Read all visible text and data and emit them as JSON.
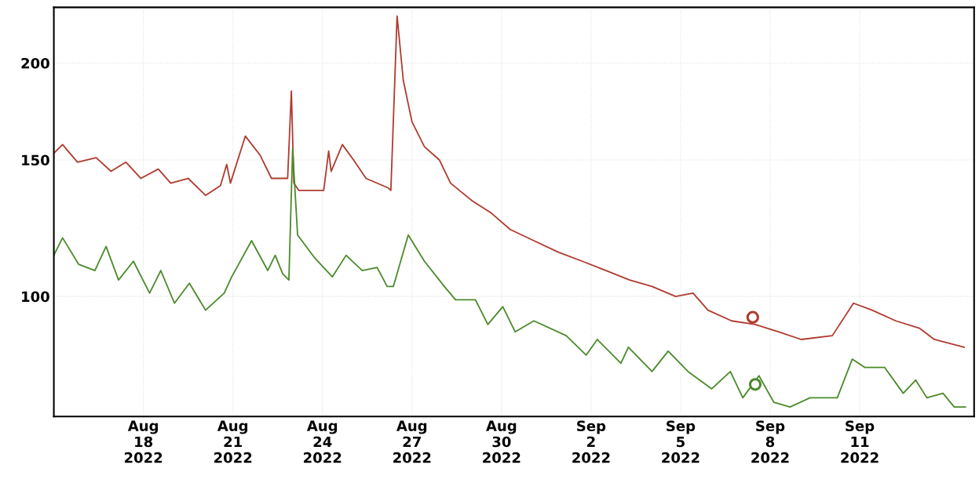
{
  "chart_data": {
    "type": "line",
    "log": "y",
    "grid": true,
    "marker": "none",
    "line_style": "solid",
    "xlim": [
      "2022-08-15T00:00",
      "2022-09-14T20:00"
    ],
    "ylim": [
      70,
      236
    ],
    "yticks": [
      100,
      150,
      200
    ],
    "xticks": [
      {
        "value": "2022-08-18",
        "label": "Aug\n18\n2022"
      },
      {
        "value": "2022-08-21",
        "label": "Aug\n21\n2022"
      },
      {
        "value": "2022-08-24",
        "label": "Aug\n24\n2022"
      },
      {
        "value": "2022-08-27",
        "label": "Aug\n27\n2022"
      },
      {
        "value": "2022-08-30",
        "label": "Aug\n30\n2022"
      },
      {
        "value": "2022-09-02",
        "label": "Sep\n2\n2022"
      },
      {
        "value": "2022-09-05",
        "label": "Sep\n5\n2022"
      },
      {
        "value": "2022-09-08",
        "label": "Sep\n8\n2022"
      },
      {
        "value": "2022-09-11",
        "label": "Sep\n11\n2022"
      }
    ],
    "series": [
      {
        "color": "#b03a2e",
        "x": [
          "2022-08-15T00:00",
          "2022-08-15T07:00",
          "2022-08-15T19:00",
          "2022-08-16T10:00",
          "2022-08-16T22:00",
          "2022-08-17T10:00",
          "2022-08-17T22:00",
          "2022-08-18T12:00",
          "2022-08-18T22:00",
          "2022-08-19T12:00",
          "2022-08-20T02:00",
          "2022-08-20T14:00",
          "2022-08-20T19:00",
          "2022-08-20T22:00",
          "2022-08-21T10:00",
          "2022-08-21T22:00",
          "2022-08-22T07:00",
          "2022-08-22T20:00",
          "2022-08-22T23:00",
          "2022-08-23T01:00",
          "2022-08-23T05:00",
          "2022-08-24T01:00",
          "2022-08-24T05:00",
          "2022-08-24T07:00",
          "2022-08-24T16:00",
          "2022-08-25T01:00",
          "2022-08-25T11:00",
          "2022-08-26T05:00",
          "2022-08-26T07:00",
          "2022-08-26T12:00",
          "2022-08-26T17:00",
          "2022-08-27T00:00",
          "2022-08-27T10:00",
          "2022-08-27T22:00",
          "2022-08-28T07:00",
          "2022-08-29T00:00",
          "2022-08-29T16:00",
          "2022-08-30T07:00",
          "2022-08-31T02:00",
          "2022-08-31T22:00",
          "2022-09-01T17:00",
          "2022-09-02T12:00",
          "2022-09-03T07:00",
          "2022-09-04T01:00",
          "2022-09-04T20:00",
          "2022-09-05T10:00",
          "2022-09-05T22:00",
          "2022-09-06T17:00",
          "2022-09-07T12:00",
          "2022-09-08T07:00",
          "2022-09-09T01:00",
          "2022-09-10T02:00",
          "2022-09-10T19:00",
          "2022-09-11T10:00",
          "2022-09-12T05:00",
          "2022-09-13T00:00",
          "2022-09-13T12:00",
          "2022-09-14T12:00"
        ],
        "values": [
          153,
          157,
          149,
          151,
          145,
          149,
          142,
          146,
          140,
          142,
          135,
          139,
          148,
          140,
          161,
          152,
          142,
          142,
          184,
          140,
          137,
          137,
          154,
          145,
          157,
          150,
          142,
          138,
          137,
          230,
          190,
          168,
          156,
          150,
          140,
          133,
          128,
          122,
          118,
          114,
          111,
          108,
          105,
          103,
          100,
          101,
          96,
          93,
          92,
          90,
          88,
          89,
          98,
          96,
          93,
          91,
          88,
          86
        ]
      },
      {
        "color": "#4a8a2a",
        "x": [
          "2022-08-15T00:00",
          "2022-08-15T07:00",
          "2022-08-15T20:00",
          "2022-08-16T09:00",
          "2022-08-16T18:00",
          "2022-08-17T04:00",
          "2022-08-17T16:00",
          "2022-08-18T05:00",
          "2022-08-18T14:00",
          "2022-08-19T01:00",
          "2022-08-19T13:00",
          "2022-08-20T02:00",
          "2022-08-20T17:00",
          "2022-08-20T23:00",
          "2022-08-21T15:00",
          "2022-08-22T04:00",
          "2022-08-22T10:00",
          "2022-08-22T16:00",
          "2022-08-22T21:00",
          "2022-08-23T00:00",
          "2022-08-23T04:00",
          "2022-08-23T18:00",
          "2022-08-24T08:00",
          "2022-08-24T19:00",
          "2022-08-25T08:00",
          "2022-08-25T20:00",
          "2022-08-26T04:00",
          "2022-08-26T09:00",
          "2022-08-26T21:00",
          "2022-08-27T10:00",
          "2022-08-28T02:00",
          "2022-08-28T11:00",
          "2022-08-29T03:00",
          "2022-08-29T13:00",
          "2022-08-30T01:00",
          "2022-08-30T11:00",
          "2022-08-31T02:00",
          "2022-09-01T04:00",
          "2022-09-01T20:00",
          "2022-09-02T05:00",
          "2022-09-03T00:00",
          "2022-09-03T06:00",
          "2022-09-04T01:00",
          "2022-09-04T14:00",
          "2022-09-05T06:00",
          "2022-09-06T01:00",
          "2022-09-06T16:00",
          "2022-09-07T02:00",
          "2022-09-07T15:00",
          "2022-09-08T03:00",
          "2022-09-08T16:00",
          "2022-09-09T08:00",
          "2022-09-10T06:00",
          "2022-09-10T18:00",
          "2022-09-11T04:00",
          "2022-09-11T20:00",
          "2022-09-12T11:00",
          "2022-09-12T21:00",
          "2022-09-13T06:00",
          "2022-09-13T19:00",
          "2022-09-14T04:00",
          "2022-09-14T13:00"
        ],
        "values": [
          113,
          119,
          110,
          108,
          116,
          105,
          111,
          101,
          108,
          98,
          104,
          96,
          101,
          106,
          118,
          108,
          113,
          107,
          105,
          155,
          120,
          112,
          106,
          113,
          108,
          109,
          103,
          103,
          120,
          111,
          103,
          99,
          99,
          92,
          97,
          90,
          93,
          89,
          84,
          88,
          82,
          86,
          80,
          85,
          80,
          76,
          80,
          74,
          79,
          73,
          72,
          74,
          74,
          83,
          81,
          81,
          75,
          78,
          74,
          75,
          72,
          72
        ]
      },
      {
        "type": "scatter",
        "marker": "circle",
        "color": "#b03a2e",
        "x": [
          "2022-09-07T10:00"
        ],
        "values": [
          94
        ]
      },
      {
        "type": "scatter",
        "marker": "circle",
        "color": "#4a8a2a",
        "x": [
          "2022-09-07T12:00"
        ],
        "values": [
          77
        ]
      }
    ]
  }
}
